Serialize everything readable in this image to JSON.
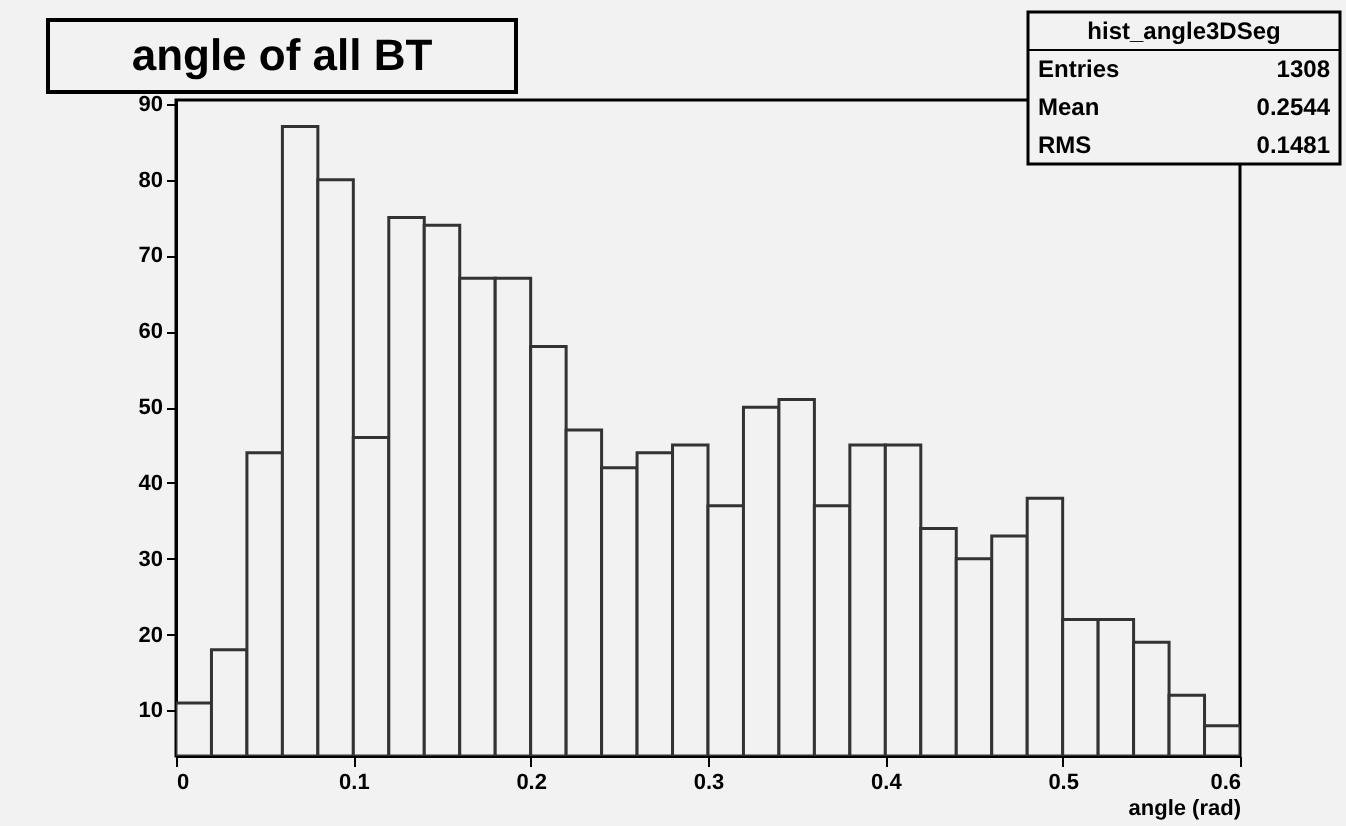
{
  "chart_data": {
    "type": "histogram",
    "title": "angle of all BT",
    "xlabel": "angle (rad)",
    "bins": [
      0,
      0.02,
      0.04,
      0.06,
      0.08,
      0.1,
      0.12,
      0.14,
      0.16,
      0.18,
      0.2,
      0.22,
      0.24,
      0.26,
      0.28,
      0.3,
      0.32,
      0.34,
      0.36,
      0.38,
      0.4,
      0.42,
      0.44,
      0.46,
      0.48,
      0.5,
      0.52,
      0.54,
      0.56,
      0.58,
      0.6
    ],
    "values": [
      11,
      18,
      44,
      87,
      80,
      46,
      75,
      74,
      67,
      67,
      58,
      47,
      42,
      44,
      45,
      37,
      50,
      51,
      37,
      45,
      45,
      34,
      30,
      33,
      38,
      22,
      22,
      19,
      12,
      8
    ],
    "color": "#333333",
    "xlim": [
      0,
      0.6
    ],
    "xticks": [
      0,
      0.1,
      0.2,
      0.3,
      0.4,
      0.5,
      0.6
    ],
    "ylim": [
      4,
      90.5
    ],
    "yticks": [
      10,
      20,
      30,
      40,
      50,
      60,
      70,
      80,
      90
    ],
    "grid": false,
    "annotations": [
      "hist_angle3DSeg",
      "Entries 1308",
      "Mean 0.2544",
      "RMS 0.1481"
    ]
  }
}
